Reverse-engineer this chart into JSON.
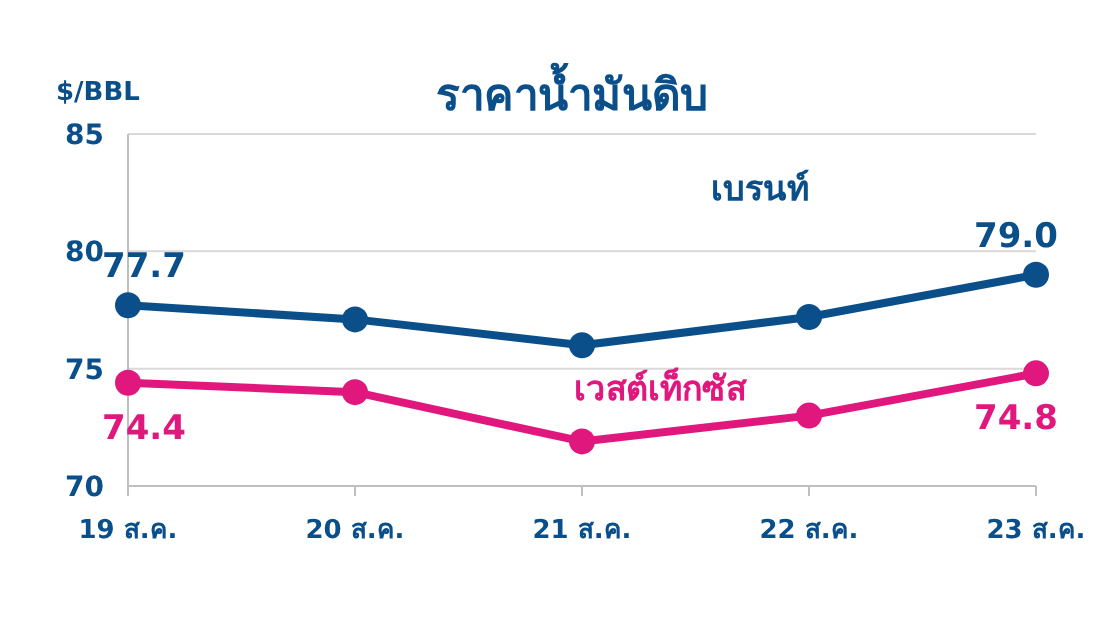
{
  "chart_data": {
    "type": "line",
    "title": "ราคาน้ำมันดิบ",
    "ylabel": "$/BBL",
    "categories": [
      "19 ส.ค.",
      "20 ส.ค.",
      "21 ส.ค.",
      "22 ส.ค.",
      "23 ส.ค."
    ],
    "series": [
      {
        "name": "เบรนท์",
        "color": "#0b4f8a",
        "values": [
          77.7,
          77.1,
          76.0,
          77.2,
          79.0
        ],
        "value_labels": [
          "77.7",
          null,
          null,
          null,
          "79.0"
        ]
      },
      {
        "name": "เวสต์เท็กซัส",
        "color": "#e0187e",
        "values": [
          74.4,
          74.0,
          71.9,
          73.0,
          74.8
        ],
        "value_labels": [
          "74.4",
          null,
          null,
          null,
          "74.8"
        ]
      }
    ],
    "ylim": [
      70,
      85
    ],
    "yticks": [
      70,
      75,
      80,
      85
    ],
    "grid": "y",
    "marker": "circle",
    "line_style": "solid",
    "legend": false
  }
}
